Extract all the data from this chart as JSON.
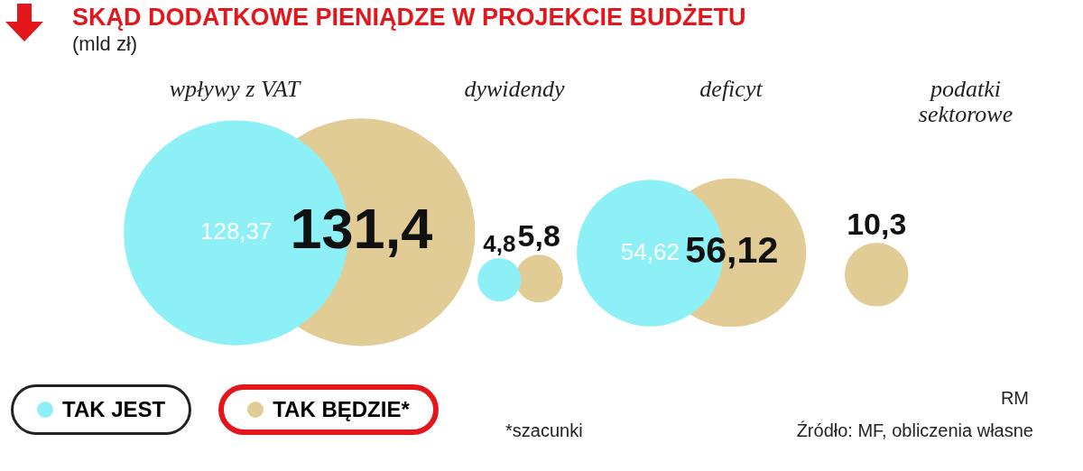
{
  "chart_data": {
    "type": "other",
    "title": "SKĄD DODATKOWE PIENIĄDZE W PROJEKCIE BUDŻETU",
    "subtitle": "(mld zł)",
    "categories": [
      "wpływy z VAT",
      "dywidendy",
      "deficyt",
      "podatki sektorowe"
    ],
    "series": [
      {
        "name": "TAK JEST",
        "color": "#8ef0f7",
        "values": [
          128.37,
          4.8,
          54.62,
          null
        ],
        "value_labels": [
          "128,37",
          "4,8",
          "54,62",
          null
        ]
      },
      {
        "name": "TAK BĘDZIE*",
        "color": "#e0cc94",
        "values": [
          131.4,
          5.8,
          56.12,
          10.3
        ],
        "value_labels": [
          "131,4",
          "5,8",
          "56,12",
          "10,3"
        ]
      }
    ],
    "legend": "bottom left",
    "annotations": [
      "*szacunki",
      "RM",
      "Źródło: MF, obliczenia własne"
    ]
  }
}
